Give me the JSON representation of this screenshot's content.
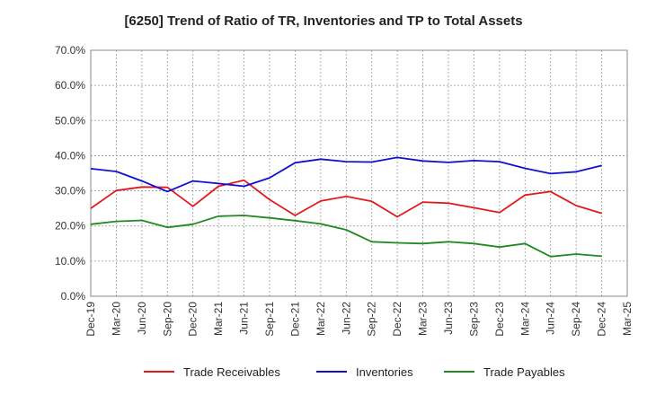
{
  "chart_data": {
    "type": "line",
    "title": "[6250]  Trend of Ratio of TR, Inventories and TP to Total Assets",
    "xlabel": "",
    "ylabel": "",
    "ylim": [
      0,
      70
    ],
    "y_ticks": [
      "0.0%",
      "10.0%",
      "20.0%",
      "30.0%",
      "40.0%",
      "50.0%",
      "60.0%",
      "70.0%"
    ],
    "x_tick_labels": [
      "Dec-19",
      "Mar-20",
      "Jun-20",
      "Sep-20",
      "Dec-20",
      "Mar-21",
      "Jun-21",
      "Sep-21",
      "Dec-21",
      "Mar-22",
      "Jun-22",
      "Sep-22",
      "Dec-22",
      "Mar-23",
      "Jun-23",
      "Sep-23",
      "Dec-23",
      "Mar-24",
      "Jun-24",
      "Sep-24",
      "Dec-24",
      "Mar-25"
    ],
    "x": [
      "Dec-19",
      "Mar-20",
      "Jun-20",
      "Sep-20",
      "Dec-20",
      "Mar-21",
      "Jun-21",
      "Sep-21",
      "Dec-21",
      "Mar-22",
      "Jun-22",
      "Sep-22",
      "Dec-22",
      "Mar-23",
      "Jun-23",
      "Sep-23",
      "Dec-23",
      "Mar-24",
      "Jun-24",
      "Sep-24",
      "Dec-24"
    ],
    "grid": true,
    "legend_position": "bottom",
    "series": [
      {
        "name": "Trade Receivables",
        "color": "#e31a1c",
        "values": [
          25.0,
          30.1,
          31.1,
          31.0,
          25.6,
          31.3,
          33.0,
          27.5,
          23.0,
          27.1,
          28.4,
          27.0,
          22.6,
          26.8,
          26.5,
          25.2,
          23.8,
          28.8,
          29.8,
          25.8,
          23.6
        ]
      },
      {
        "name": "Inventories",
        "color": "#1010d0",
        "values": [
          36.3,
          35.5,
          32.8,
          29.8,
          32.8,
          32.1,
          31.3,
          33.7,
          38.0,
          39.0,
          38.3,
          38.2,
          39.5,
          38.5,
          38.1,
          38.6,
          38.3,
          36.4,
          34.9,
          35.4,
          37.2
        ]
      },
      {
        "name": "Trade Payables",
        "color": "#1f8a1f",
        "values": [
          20.5,
          21.3,
          21.6,
          19.6,
          20.5,
          22.8,
          23.0,
          22.3,
          21.5,
          20.6,
          18.9,
          15.5,
          15.2,
          15.0,
          15.5,
          15.0,
          14.0,
          15.0,
          11.3,
          12.0,
          11.4
        ]
      }
    ]
  }
}
